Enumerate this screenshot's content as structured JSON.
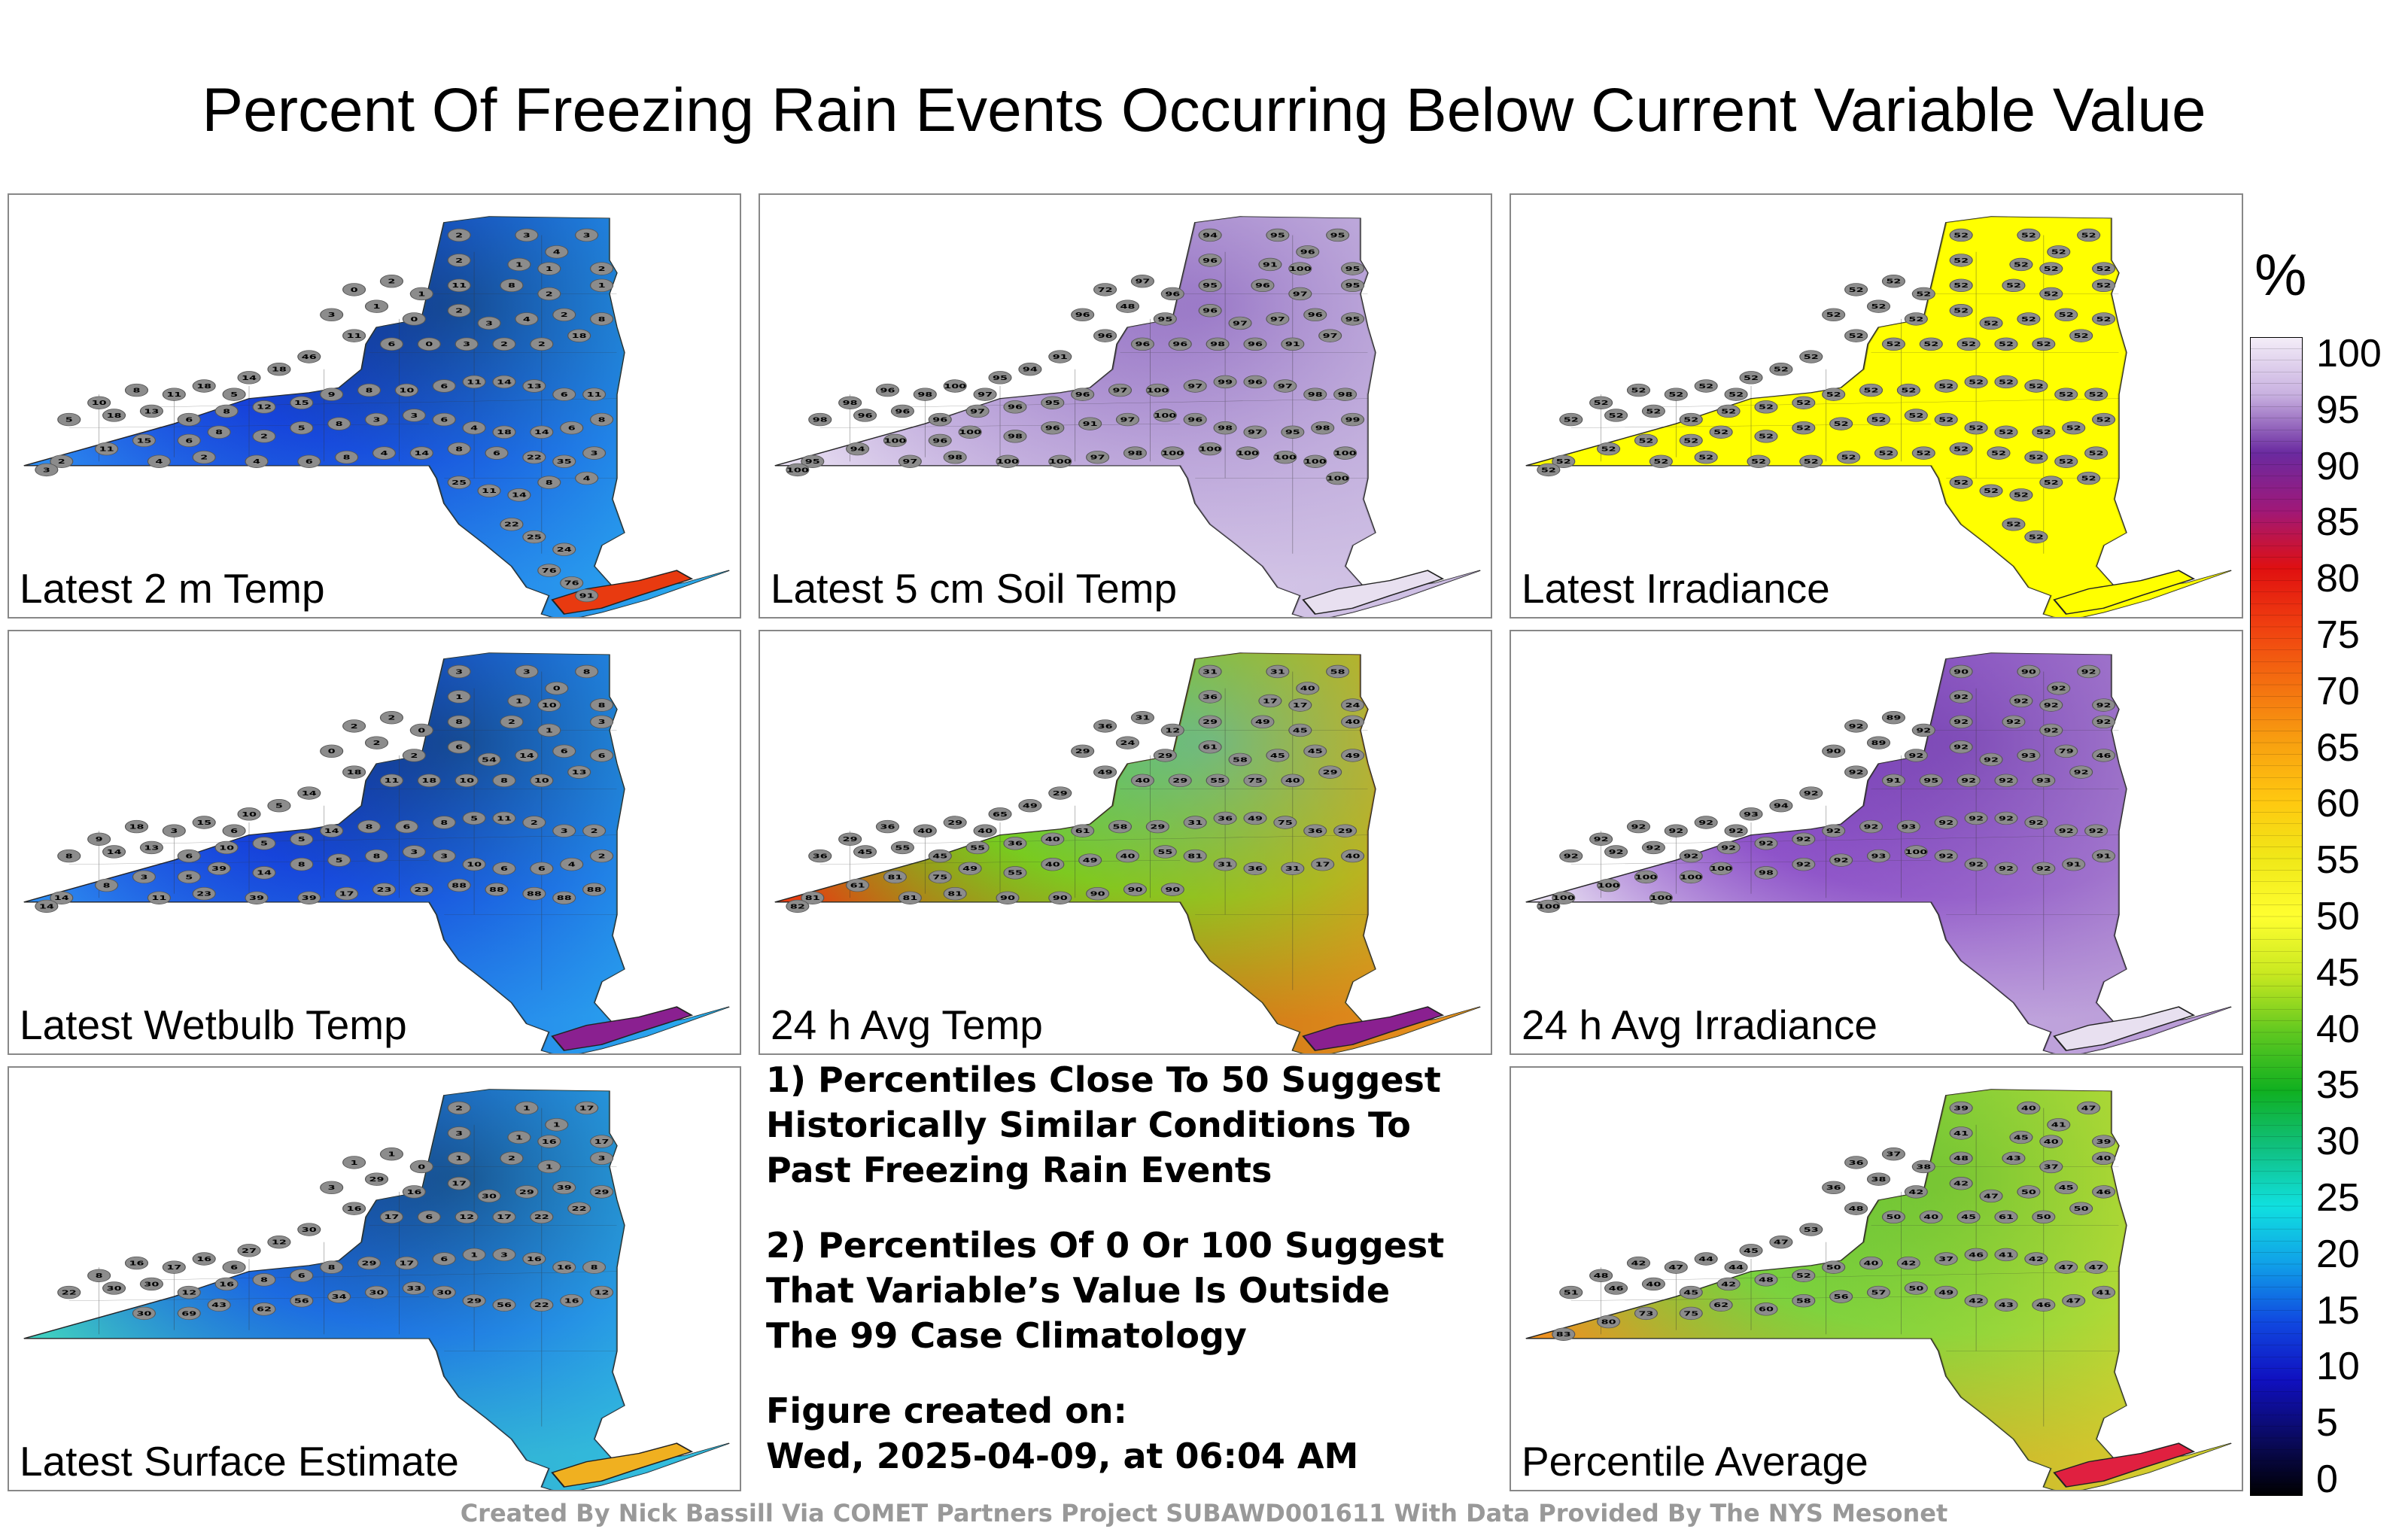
{
  "title": "Percent Of Freezing Rain Events Occurring Below Current Variable Value",
  "panels": [
    {
      "label": "Latest 2 m Temp",
      "base": "#1436d8",
      "hi": "#080a3a",
      "lo": "#2d8cf0",
      "east": "#2ab8f0",
      "li": "#e83a10",
      "values": [
        "2",
        "3",
        "3",
        "2",
        "4",
        "1",
        "1",
        "2",
        "0",
        "2",
        "1",
        "11",
        "8",
        "2",
        "1",
        "3",
        "1",
        "0",
        "2",
        "3",
        "4",
        "2",
        "8",
        "18",
        "2",
        "2",
        "3",
        "0",
        "6",
        "11",
        "46",
        "18",
        "14",
        "5",
        "18",
        "11",
        "8",
        "10",
        "5",
        "18",
        "13",
        "6",
        "8",
        "12",
        "15",
        "9",
        "8",
        "10",
        "6",
        "11",
        "14",
        "13",
        "6",
        "11",
        "8",
        "6",
        "14",
        "18",
        "4",
        "6",
        "3",
        "3",
        "8",
        "5",
        "2",
        "8",
        "6",
        "15",
        "11",
        "2",
        "3",
        "4",
        "2",
        "4",
        "6",
        "8",
        "4",
        "14",
        "8",
        "6",
        "22",
        "35",
        "3",
        "4",
        "8",
        "14",
        "11",
        "25",
        "22",
        "25",
        "24",
        "76",
        "76",
        "91"
      ]
    },
    {
      "label": "Latest 5 cm Soil Temp",
      "base": "#b8a0d8",
      "hi": "#7040b0",
      "lo": "#e8dff2",
      "east": "#c8b8e0",
      "li": "#e8e0f0",
      "values": [
        "94",
        "95",
        "95",
        "96",
        "96",
        "91",
        "100",
        "95",
        "72",
        "97",
        "96",
        "95",
        "96",
        "97",
        "95",
        "96",
        "48",
        "95",
        "96",
        "97",
        "97",
        "96",
        "95",
        "97",
        "91",
        "96",
        "98",
        "96",
        "96",
        "96",
        "91",
        "94",
        "95",
        "97",
        "100",
        "98",
        "96",
        "98",
        "98",
        "96",
        "96",
        "96",
        "97",
        "96",
        "95",
        "96",
        "97",
        "100",
        "97",
        "99",
        "96",
        "97",
        "98",
        "98",
        "99",
        "98",
        "95",
        "97",
        "98",
        "96",
        "100",
        "97",
        "91",
        "96",
        "98",
        "100",
        "96",
        "100",
        "94",
        "95",
        "100",
        "97",
        "98",
        "100",
        "100",
        "97",
        "98",
        "100",
        "100",
        "100",
        "100",
        "100",
        "100",
        "100"
      ]
    },
    {
      "label": "Latest Irradiance",
      "base": "#ffff00",
      "hi": "#ffff00",
      "lo": "#ffff00",
      "east": "#ffff00",
      "li": "#ffff00",
      "values": [
        "52",
        "52",
        "52",
        "52",
        "52",
        "52",
        "52",
        "52",
        "52",
        "52",
        "52",
        "52",
        "52",
        "52",
        "52",
        "52",
        "52",
        "52",
        "52",
        "52",
        "52",
        "52",
        "52",
        "52",
        "52",
        "52",
        "52",
        "52",
        "52",
        "52",
        "52",
        "52",
        "52",
        "52",
        "52",
        "52",
        "52",
        "52",
        "52",
        "52",
        "52",
        "52",
        "52",
        "52",
        "52",
        "52",
        "52",
        "52",
        "52",
        "52",
        "52",
        "52",
        "52",
        "52",
        "52",
        "52",
        "52",
        "52",
        "52",
        "52",
        "52",
        "52",
        "52",
        "52",
        "52",
        "52",
        "52",
        "52",
        "52",
        "52",
        "52",
        "52",
        "52",
        "52",
        "52",
        "52",
        "52",
        "52",
        "52",
        "52",
        "52",
        "52",
        "52",
        "52",
        "52",
        "52",
        "52",
        "52",
        "52",
        "52"
      ]
    },
    {
      "label": "Latest Wetbulb Temp",
      "base": "#1436d8",
      "hi": "#080a3a",
      "lo": "#2d8cf0",
      "east": "#2ab8f0",
      "li": "#8a2090",
      "values": [
        "3",
        "3",
        "8",
        "1",
        "0",
        "1",
        "10",
        "8",
        "2",
        "2",
        "0",
        "8",
        "2",
        "1",
        "3",
        "0",
        "2",
        "2",
        "6",
        "54",
        "14",
        "6",
        "6",
        "13",
        "10",
        "8",
        "10",
        "18",
        "11",
        "18",
        "14",
        "5",
        "10",
        "6",
        "15",
        "3",
        "18",
        "9",
        "8",
        "14",
        "13",
        "6",
        "10",
        "5",
        "5",
        "14",
        "8",
        "6",
        "8",
        "5",
        "11",
        "2",
        "3",
        "2",
        "2",
        "4",
        "6",
        "6",
        "10",
        "3",
        "3",
        "8",
        "5",
        "8",
        "14",
        "39",
        "5",
        "3",
        "8",
        "14",
        "14",
        "11",
        "23",
        "39",
        "39",
        "17",
        "23",
        "23",
        "88",
        "88",
        "88",
        "88",
        "88"
      ]
    },
    {
      "label": "24 h Avg Temp",
      "base": "#6ad020",
      "hi": "#20c0e8",
      "lo": "#e83a10",
      "east": "#f0a020",
      "li": "#8a2090",
      "values": [
        "31",
        "31",
        "58",
        "36",
        "40",
        "17",
        "17",
        "24",
        "36",
        "31",
        "12",
        "29",
        "49",
        "45",
        "40",
        "29",
        "24",
        "29",
        "61",
        "58",
        "45",
        "45",
        "49",
        "29",
        "40",
        "75",
        "55",
        "29",
        "40",
        "49",
        "29",
        "49",
        "65",
        "40",
        "29",
        "40",
        "36",
        "29",
        "36",
        "45",
        "55",
        "45",
        "55",
        "36",
        "40",
        "61",
        "58",
        "29",
        "31",
        "36",
        "49",
        "75",
        "36",
        "29",
        "40",
        "17",
        "31",
        "36",
        "31",
        "81",
        "55",
        "40",
        "49",
        "40",
        "55",
        "49",
        "75",
        "81",
        "61",
        "81",
        "82",
        "81",
        "81",
        "90",
        "90",
        "90",
        "90",
        "90"
      ]
    },
    {
      "label": "24 h Avg Irradiance",
      "base": "#8a4cc8",
      "hi": "#5a20a0",
      "lo": "#e8e0f2",
      "east": "#b090d0",
      "li": "#e8e0f0",
      "values": [
        "90",
        "90",
        "92",
        "92",
        "92",
        "92",
        "92",
        "92",
        "92",
        "89",
        "92",
        "92",
        "92",
        "92",
        "92",
        "90",
        "89",
        "92",
        "92",
        "92",
        "93",
        "79",
        "46",
        "92",
        "93",
        "92",
        "92",
        "95",
        "91",
        "92",
        "92",
        "94",
        "93",
        "92",
        "92",
        "92",
        "92",
        "92",
        "92",
        "92",
        "92",
        "92",
        "92",
        "92",
        "92",
        "92",
        "92",
        "93",
        "92",
        "92",
        "92",
        "92",
        "92",
        "92",
        "91",
        "91",
        "92",
        "92",
        "92",
        "92",
        "100",
        "93",
        "92",
        "92",
        "98",
        "100",
        "100",
        "100",
        "100",
        "100",
        "100",
        "100"
      ]
    },
    {
      "label": "Latest Surface Estimate",
      "base": "#1a60e0",
      "hi": "#080a3a",
      "lo": "#40d0c0",
      "east": "#30c0e8",
      "li": "#f0b020",
      "values": [
        "2",
        "1",
        "17",
        "3",
        "1",
        "1",
        "16",
        "17",
        "1",
        "1",
        "0",
        "1",
        "2",
        "1",
        "3",
        "3",
        "29",
        "16",
        "17",
        "30",
        "29",
        "39",
        "29",
        "22",
        "22",
        "17",
        "12",
        "6",
        "17",
        "16",
        "30",
        "12",
        "27",
        "6",
        "16",
        "17",
        "16",
        "8",
        "22",
        "30",
        "30",
        "12",
        "16",
        "8",
        "6",
        "8",
        "29",
        "17",
        "6",
        "1",
        "3",
        "16",
        "16",
        "8",
        "12",
        "16",
        "22",
        "56",
        "29",
        "30",
        "33",
        "30",
        "34",
        "56",
        "62",
        "43",
        "69",
        "30"
      ]
    },
    {
      "label": "Percentile Average",
      "base": "#70d040",
      "hi": "#40b030",
      "lo": "#f09020",
      "east": "#d8e030",
      "li": "#e02040",
      "values": [
        "39",
        "40",
        "47",
        "41",
        "41",
        "45",
        "40",
        "39",
        "36",
        "37",
        "38",
        "48",
        "43",
        "37",
        "40",
        "36",
        "38",
        "42",
        "42",
        "47",
        "50",
        "45",
        "46",
        "50",
        "50",
        "61",
        "45",
        "40",
        "50",
        "48",
        "53",
        "47",
        "45",
        "44",
        "44",
        "47",
        "42",
        "48",
        "51",
        "46",
        "40",
        "45",
        "42",
        "48",
        "52",
        "50",
        "40",
        "42",
        "37",
        "46",
        "41",
        "42",
        "47",
        "47",
        "41",
        "47",
        "46",
        "43",
        "42",
        "49",
        "50",
        "57",
        "56",
        "58",
        "60",
        "62",
        "75",
        "73",
        "80",
        "83"
      ]
    }
  ],
  "notes": {
    "note1_line1": "1) Percentiles Close To 50 Suggest",
    "note1_line2": "Historically Similar Conditions To",
    "note1_line3": "Past Freezing Rain Events",
    "note2_line1": "2) Percentiles Of 0 Or 100 Suggest",
    "note2_line2": "That Variable’s Value Is Outside",
    "note2_line3": "The 99 Case Climatology",
    "created_label": "Figure created on:",
    "created_value": "Wed, 2025-04-09, at 06:04 AM"
  },
  "colorbar": {
    "unit": "%",
    "ticks": [
      "100",
      "95",
      "90",
      "85",
      "80",
      "75",
      "70",
      "65",
      "60",
      "55",
      "50",
      "45",
      "40",
      "35",
      "30",
      "25",
      "20",
      "15",
      "10",
      "5",
      "0"
    ]
  },
  "footer": "Created By Nick Bassill Via COMET Partners Project SUBAWD001611 With Data Provided By The NYS Mesonet"
}
